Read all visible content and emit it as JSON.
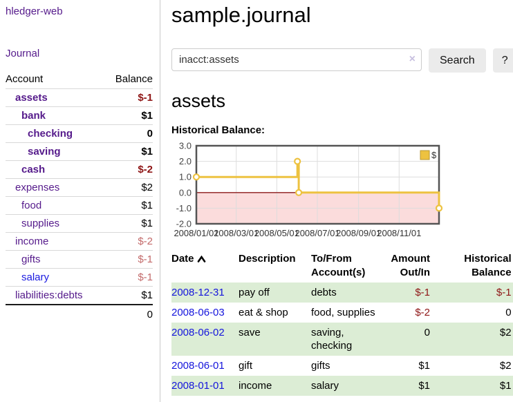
{
  "app": {
    "title": "hledger-web"
  },
  "sidebar": {
    "journal_label": "Journal",
    "accounts": {
      "headers": [
        "Account",
        "Balance"
      ],
      "rows": [
        {
          "name": "assets",
          "balance": "$-1",
          "depth": 1,
          "bold": true
        },
        {
          "name": "bank",
          "balance": "$1",
          "depth": 2,
          "bold": true
        },
        {
          "name": "checking",
          "balance": "0",
          "depth": 3,
          "bold": true
        },
        {
          "name": "saving",
          "balance": "$1",
          "depth": 3,
          "bold": true
        },
        {
          "name": "cash",
          "balance": "$-2",
          "depth": 2,
          "bold": true
        },
        {
          "name": "expenses",
          "balance": "$2",
          "depth": 1,
          "bold": false
        },
        {
          "name": "food",
          "balance": "$1",
          "depth": 2,
          "bold": false
        },
        {
          "name": "supplies",
          "balance": "$1",
          "depth": 2,
          "bold": false
        },
        {
          "name": "income",
          "balance": "$-2",
          "depth": 1,
          "bold": false
        },
        {
          "name": "gifts",
          "balance": "$-1",
          "depth": 2,
          "bold": false
        },
        {
          "name": "salary",
          "balance": "$-1",
          "depth": 2,
          "bold": false,
          "unvisited": true
        },
        {
          "name": "liabilities:debts",
          "balance": "$1",
          "depth": 1,
          "bold": false
        }
      ],
      "total": "0"
    }
  },
  "main": {
    "title": "sample.journal",
    "search": {
      "value": "inacct:assets",
      "clear_icon": "×",
      "button_label": "Search",
      "help_label": "?"
    },
    "account_heading": "assets",
    "register": {
      "headers": [
        "Date",
        "Description",
        "To/From Account(s)",
        "Amount Out/In",
        "Historical Balance"
      ],
      "rows": [
        {
          "date": "2008-12-31",
          "description": "pay off",
          "accounts": "debts",
          "amount": "$-1",
          "balance": "$-1"
        },
        {
          "date": "2008-06-03",
          "description": "eat & shop",
          "accounts": "food, supplies",
          "amount": "$-2",
          "balance": "0"
        },
        {
          "date": "2008-06-02",
          "description": "save",
          "accounts": "saving, checking",
          "amount": "0",
          "balance": "$2"
        },
        {
          "date": "2008-06-01",
          "description": "gift",
          "accounts": "gifts",
          "amount": "$1",
          "balance": "$2"
        },
        {
          "date": "2008-01-01",
          "description": "income",
          "accounts": "salary",
          "amount": "$1",
          "balance": "$1"
        }
      ]
    }
  },
  "colors": {
    "link_purple": "#551a8b",
    "link_blue": "#1a1ae0",
    "negative_strong": "#8e1515",
    "negative_soft": "#c36a6a",
    "row_green": "#dcedd5",
    "accent_gold": "#edc240"
  },
  "chart_data": {
    "type": "line",
    "title": "Historical Balance:",
    "step": true,
    "x_range": [
      "2008-01-01",
      "2008-12-31"
    ],
    "ylim": [
      -2,
      3
    ],
    "y_ticks": [
      "3.0",
      "2.0",
      "1.0",
      "0.0",
      "-1.0",
      "-2.0"
    ],
    "x_ticks": [
      "2008/01/01",
      "2008/03/01",
      "2008/05/01",
      "2008/07/01",
      "2008/09/01",
      "2008/11/01"
    ],
    "series": [
      {
        "name": "$",
        "color": "#edc240",
        "points": [
          [
            "2008-01-01",
            1
          ],
          [
            "2008-06-01",
            2
          ],
          [
            "2008-06-03",
            0
          ],
          [
            "2008-12-31",
            -1
          ]
        ]
      }
    ],
    "grid": true,
    "legend_position": "top-right",
    "zero_line_color": "#8b1a1a",
    "negative_region_color": "#fbdcdc",
    "plot_border_color": "#545454"
  }
}
